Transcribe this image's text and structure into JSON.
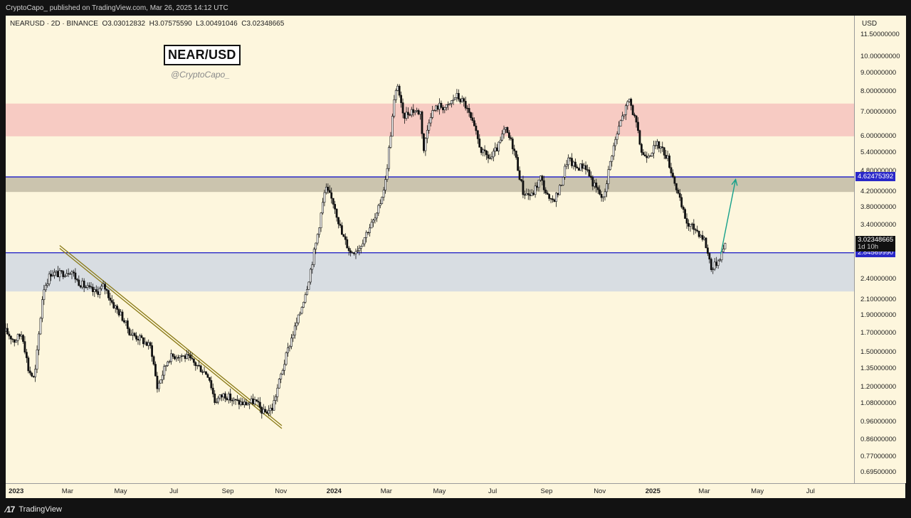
{
  "header": {
    "published_text": "CryptoCapo_ published on TradingView.com, Mar 26, 2025 14:12 UTC"
  },
  "legend": {
    "symbol": "NEARUSD · 2D · BINANCE",
    "open": "O3.03012832",
    "high": "H3.07575590",
    "low": "L3.00491046",
    "close": "C3.02348665"
  },
  "title": "NEAR/USD",
  "watermark": "@CryptoCapo_",
  "footer": {
    "brand": "TradingView",
    "logo_icon": "tradingview-logo-icon"
  },
  "colors": {
    "background": "#fdf6dd",
    "resistance_zone": "#f7cbc3",
    "support_zone": "#d8dde2",
    "mid_zone": "#cbc4ae",
    "level_line": "#2a28c9",
    "trendline": "#8a7a16",
    "projection_arrow": "#15a08a",
    "candle": "#111111"
  },
  "chart_data": {
    "type": "candlestick",
    "symbol": "NEARUSD",
    "interval": "2D",
    "exchange": "BINANCE",
    "y_scale": "log",
    "ylim": [
      0.65,
      13.0
    ],
    "xlim": [
      "2022-12-20",
      "2025-08-20"
    ],
    "y_unit": "USD",
    "y_ticks": [
      "11.50000000",
      "10.00000000",
      "9.00000000",
      "8.00000000",
      "7.00000000",
      "6.00000000",
      "5.40000000",
      "4.80000000",
      "4.20000000",
      "3.80000000",
      "3.40000000",
      "2.40000000",
      "2.10000000",
      "1.90000000",
      "1.70000000",
      "1.50000000",
      "1.35000000",
      "1.20000000",
      "1.08000000",
      "0.96000000",
      "0.86000000",
      "0.77000000",
      "0.69500000"
    ],
    "x_ticks": [
      {
        "label": "2023",
        "date": "2023-01-01",
        "bold": true
      },
      {
        "label": "Mar",
        "date": "2023-03-01"
      },
      {
        "label": "May",
        "date": "2023-05-01"
      },
      {
        "label": "Jul",
        "date": "2023-07-01"
      },
      {
        "label": "Sep",
        "date": "2023-09-01"
      },
      {
        "label": "Nov",
        "date": "2023-11-01"
      },
      {
        "label": "2024",
        "date": "2024-01-01",
        "bold": true
      },
      {
        "label": "Mar",
        "date": "2024-03-01"
      },
      {
        "label": "May",
        "date": "2024-05-01"
      },
      {
        "label": "Jul",
        "date": "2024-07-01"
      },
      {
        "label": "Sep",
        "date": "2024-09-01"
      },
      {
        "label": "Nov",
        "date": "2024-11-01"
      },
      {
        "label": "2025",
        "date": "2025-01-01",
        "bold": true
      },
      {
        "label": "Mar",
        "date": "2025-03-01"
      },
      {
        "label": "May",
        "date": "2025-05-01"
      },
      {
        "label": "Jul",
        "date": "2025-07-01"
      }
    ],
    "price_series": [
      [
        "2022-12-20",
        1.72
      ],
      [
        "2022-12-30",
        1.62
      ],
      [
        "2023-01-08",
        1.7
      ],
      [
        "2023-01-15",
        1.35
      ],
      [
        "2023-01-22",
        1.26
      ],
      [
        "2023-02-01",
        2.25
      ],
      [
        "2023-02-10",
        2.5
      ],
      [
        "2023-02-20",
        2.48
      ],
      [
        "2023-03-05",
        2.55
      ],
      [
        "2023-03-12",
        2.38
      ],
      [
        "2023-03-22",
        2.28
      ],
      [
        "2023-04-02",
        2.2
      ],
      [
        "2023-04-12",
        2.3
      ],
      [
        "2023-04-22",
        2.05
      ],
      [
        "2023-05-02",
        1.9
      ],
      [
        "2023-05-12",
        1.7
      ],
      [
        "2023-05-25",
        1.63
      ],
      [
        "2023-06-05",
        1.55
      ],
      [
        "2023-06-12",
        1.2
      ],
      [
        "2023-06-25",
        1.45
      ],
      [
        "2023-07-05",
        1.48
      ],
      [
        "2023-07-15",
        1.46
      ],
      [
        "2023-07-28",
        1.38
      ],
      [
        "2023-08-10",
        1.3
      ],
      [
        "2023-08-17",
        1.1
      ],
      [
        "2023-08-28",
        1.15
      ],
      [
        "2023-09-08",
        1.1
      ],
      [
        "2023-09-20",
        1.08
      ],
      [
        "2023-10-02",
        1.1
      ],
      [
        "2023-10-12",
        1.02
      ],
      [
        "2023-10-22",
        1.05
      ],
      [
        "2023-11-01",
        1.3
      ],
      [
        "2023-11-12",
        1.62
      ],
      [
        "2023-11-22",
        1.9
      ],
      [
        "2023-12-02",
        2.35
      ],
      [
        "2023-12-12",
        3.1
      ],
      [
        "2023-12-22",
        4.3
      ],
      [
        "2024-01-01",
        3.9
      ],
      [
        "2024-01-10",
        3.2
      ],
      [
        "2024-01-20",
        2.85
      ],
      [
        "2024-01-30",
        2.95
      ],
      [
        "2024-02-09",
        3.3
      ],
      [
        "2024-02-19",
        3.6
      ],
      [
        "2024-02-29",
        4.5
      ],
      [
        "2024-03-10",
        7.5
      ],
      [
        "2024-03-14",
        8.4
      ],
      [
        "2024-03-20",
        6.8
      ],
      [
        "2024-03-30",
        7.1
      ],
      [
        "2024-04-09",
        7.0
      ],
      [
        "2024-04-13",
        5.5
      ],
      [
        "2024-04-20",
        6.9
      ],
      [
        "2024-04-30",
        7.3
      ],
      [
        "2024-05-10",
        7.2
      ],
      [
        "2024-05-20",
        7.8
      ],
      [
        "2024-05-30",
        7.4
      ],
      [
        "2024-06-09",
        6.4
      ],
      [
        "2024-06-19",
        5.4
      ],
      [
        "2024-06-29",
        5.2
      ],
      [
        "2024-07-09",
        5.7
      ],
      [
        "2024-07-15",
        6.3
      ],
      [
        "2024-07-25",
        5.6
      ],
      [
        "2024-08-05",
        4.2
      ],
      [
        "2024-08-15",
        4.1
      ],
      [
        "2024-08-25",
        4.6
      ],
      [
        "2024-09-05",
        3.9
      ],
      [
        "2024-09-15",
        4.2
      ],
      [
        "2024-09-25",
        5.2
      ],
      [
        "2024-10-05",
        4.9
      ],
      [
        "2024-10-15",
        5.0
      ],
      [
        "2024-10-25",
        4.4
      ],
      [
        "2024-11-05",
        4.0
      ],
      [
        "2024-11-15",
        5.4
      ],
      [
        "2024-11-25",
        6.6
      ],
      [
        "2024-12-05",
        7.6
      ],
      [
        "2024-12-12",
        6.6
      ],
      [
        "2024-12-20",
        5.3
      ],
      [
        "2024-12-28",
        5.4
      ],
      [
        "2025-01-07",
        5.7
      ],
      [
        "2025-01-17",
        5.3
      ],
      [
        "2025-01-27",
        4.4
      ],
      [
        "2025-02-03",
        3.8
      ],
      [
        "2025-02-10",
        3.4
      ],
      [
        "2025-02-20",
        3.3
      ],
      [
        "2025-03-01",
        3.1
      ],
      [
        "2025-03-10",
        2.55
      ],
      [
        "2025-03-18",
        2.75
      ],
      [
        "2025-03-26",
        3.02
      ]
    ],
    "levels": [
      {
        "value": 4.62475392,
        "label": "4.62475392"
      },
      {
        "value": 2.8456999,
        "label": "2.84569990"
      }
    ],
    "zones": [
      {
        "name": "resistance",
        "low": 6.0,
        "high": 7.4
      },
      {
        "name": "mid",
        "low": 4.2,
        "high": 4.62475392
      },
      {
        "name": "support",
        "low": 2.22,
        "high": 2.8456999
      }
    ],
    "trendline": {
      "from": [
        "2023-02-20",
        2.98
      ],
      "to": [
        "2023-11-02",
        0.94
      ]
    },
    "projection_arrow": {
      "from": [
        "2025-03-20",
        2.82
      ],
      "to": [
        "2025-04-06",
        4.55
      ]
    },
    "last_price": {
      "value": 3.02348665,
      "label": "3.02348665",
      "countdown": "1d 10h"
    }
  }
}
